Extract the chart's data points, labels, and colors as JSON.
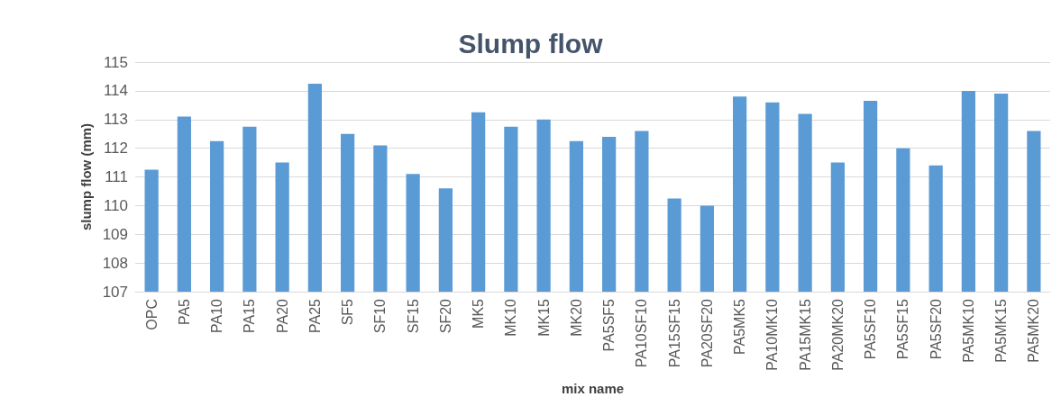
{
  "chart_data": {
    "type": "bar",
    "title": "Slump flow",
    "xlabel": "mix name",
    "ylabel": "slump flow (mm)",
    "categories": [
      "OPC",
      "PA5",
      "PA10",
      "PA15",
      "PA20",
      "PA25",
      "SF5",
      "SF10",
      "SF15",
      "SF20",
      "MK5",
      "MK10",
      "MK15",
      "MK20",
      "PA5SF5",
      "PA10SF10",
      "PA15SF15",
      "PA20SF20",
      "PA5MK5",
      "PA10MK10",
      "PA15MK15",
      "PA20MK20",
      "PA5SF10",
      "PA5SF15",
      "PA5SF20",
      "PA5MK10",
      "PA5MK15",
      "PA5MK20"
    ],
    "values": [
      111.25,
      113.1,
      112.25,
      112.75,
      111.5,
      114.25,
      112.5,
      112.1,
      111.1,
      110.6,
      113.25,
      112.75,
      113,
      112.25,
      112.4,
      112.6,
      110.25,
      110,
      113.8,
      113.6,
      113.2,
      111.5,
      113.65,
      112,
      111.4,
      114,
      113.9,
      112.6
    ],
    "color": "#5b9bd5",
    "ylim": [
      107,
      115
    ],
    "yticks": [
      107,
      108,
      109,
      110,
      111,
      112,
      113,
      114,
      115
    ],
    "grid": "y"
  }
}
